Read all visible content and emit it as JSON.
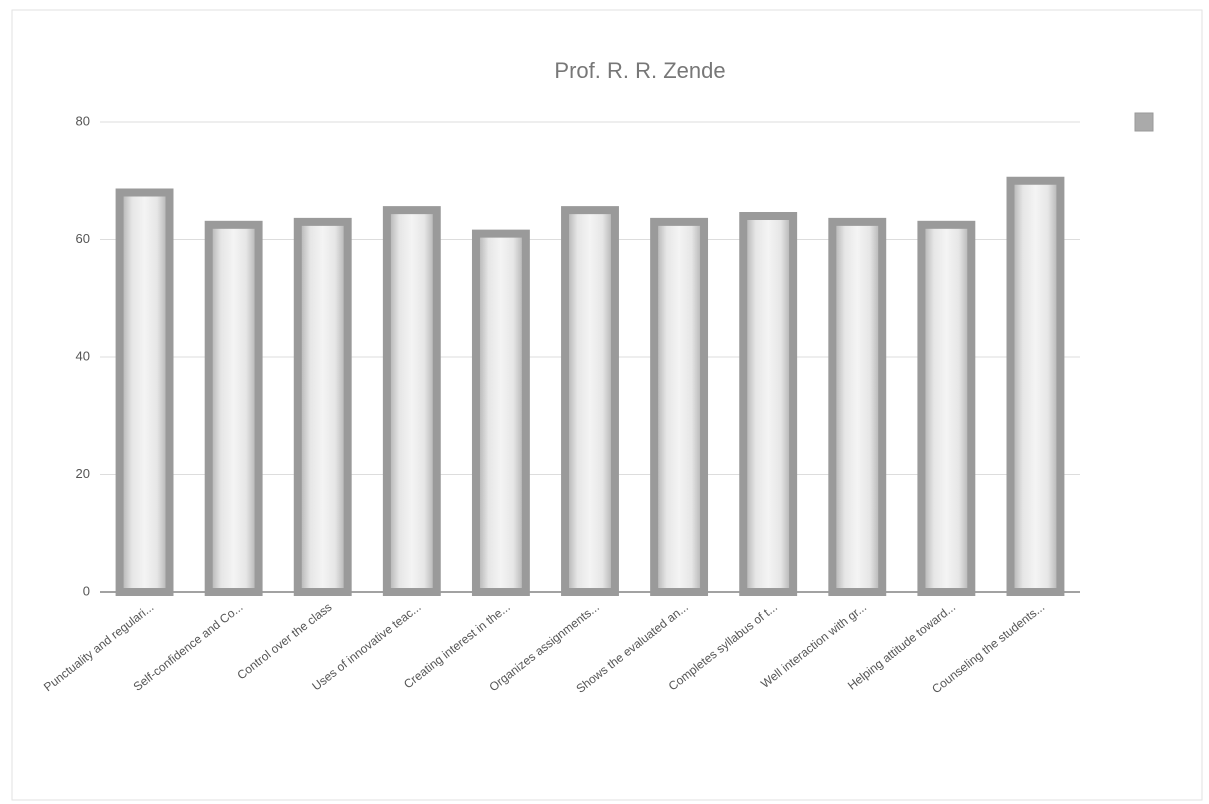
{
  "chart_data": {
    "type": "bar",
    "title": "Prof. R. R. Zende",
    "categories": [
      "Punctuality and regulari...",
      "Self-confidence and Co...",
      "Control over the class",
      "Uses of innovative teac...",
      "Creating interest in the...",
      "Organizes assignments...",
      "Shows the evaluated an...",
      "Completes syllabus of t...",
      "Well interaction with gr...",
      "Helping attitude toward...",
      "Counseling the students..."
    ],
    "values": [
      68,
      62.5,
      63,
      65,
      61,
      65,
      63,
      64,
      63,
      62.5,
      70
    ],
    "color": "#9a9a9a",
    "ylim": [
      0,
      80
    ],
    "yticks": [
      0,
      20,
      40,
      60,
      80
    ],
    "grid": true
  }
}
